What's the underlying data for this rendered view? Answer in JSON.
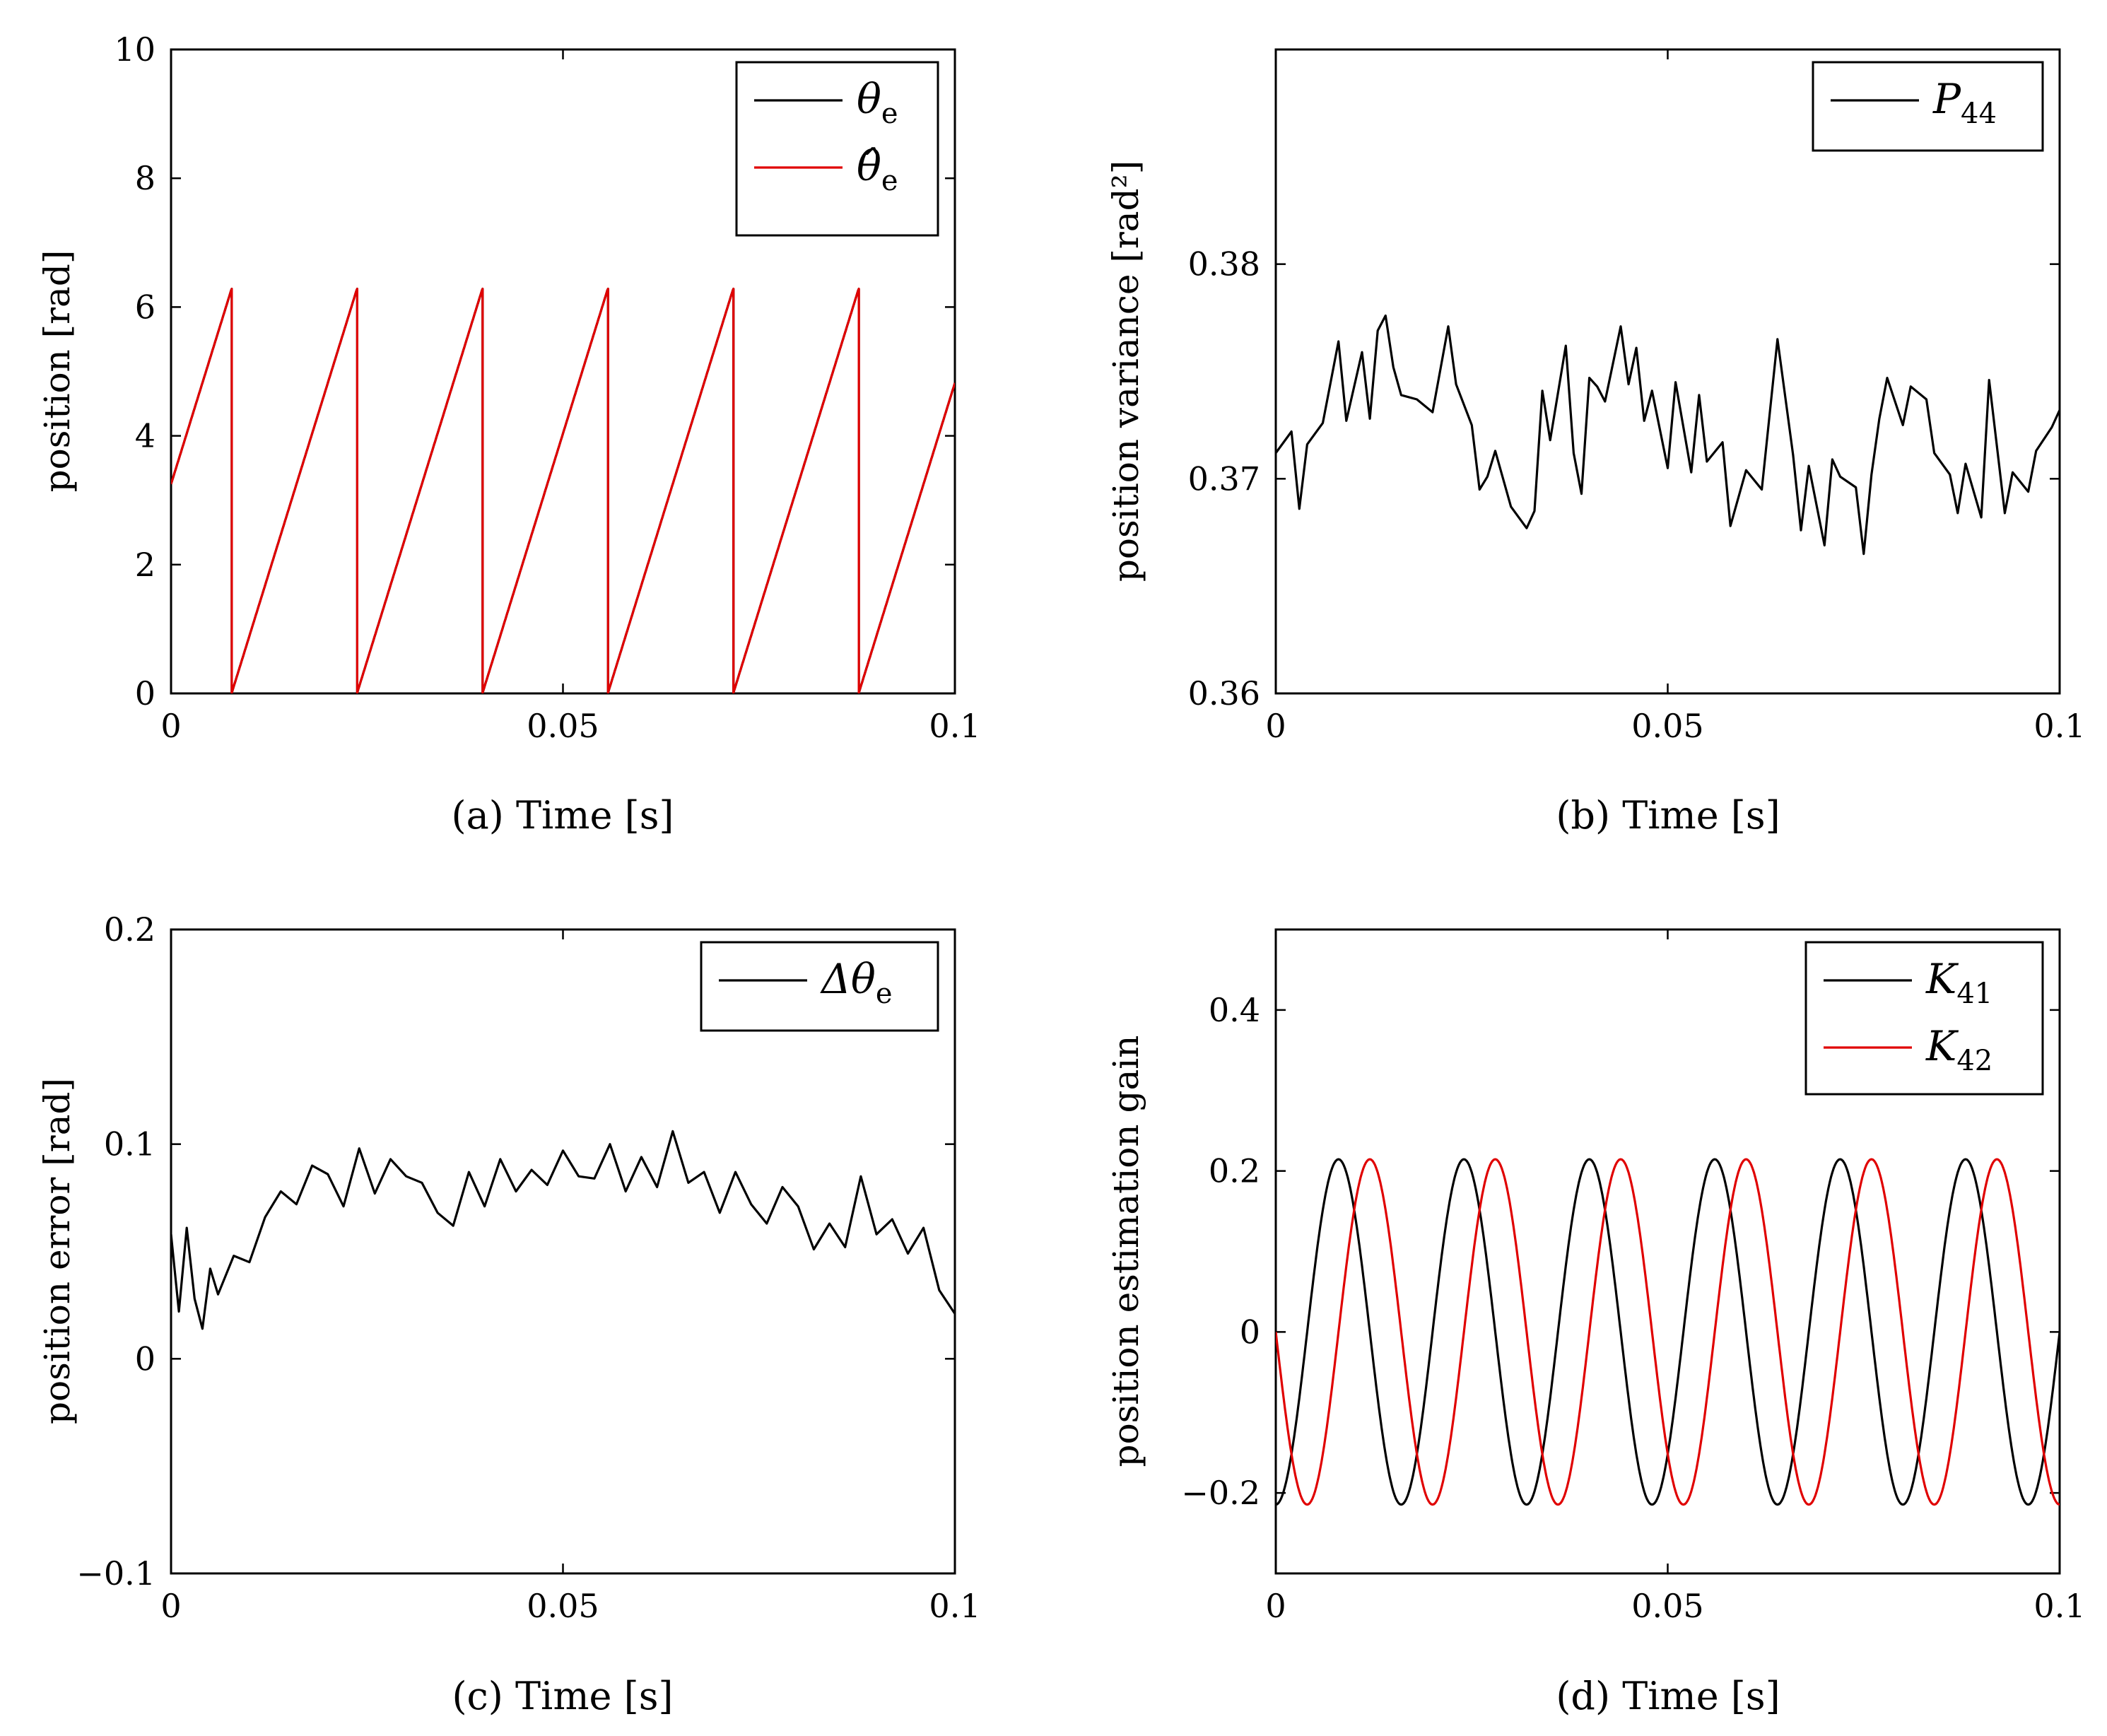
{
  "colors": {
    "black_series": "#000000",
    "red_series": "#e00000",
    "axis": "#000000",
    "background": "#ffffff"
  },
  "chart_data": [
    {
      "id": "a",
      "type": "line",
      "caption": "(a) Time [s]",
      "xlabel": "Time [s]",
      "ylabel": "position [rad]",
      "xlim": [
        0,
        0.1
      ],
      "ylim": [
        0,
        10
      ],
      "x_ticks": [
        0,
        0.05,
        0.1
      ],
      "x_tick_labels": [
        "0",
        "0.05",
        "0.1"
      ],
      "y_ticks": [
        0,
        2,
        4,
        6,
        8,
        10
      ],
      "y_tick_labels": [
        "0",
        "2",
        "4",
        "6",
        "8",
        "10"
      ],
      "legend_position": "top-right",
      "series": [
        {
          "name": "θe",
          "label_main": "θ",
          "label_sub": "e",
          "color": "#000000",
          "kind": "sawtooth",
          "start": 3.25,
          "slope": 392.7,
          "period_wrap": 6.283,
          "min": 0
        },
        {
          "name": "θ̂e",
          "label_main": "θ̂",
          "label_sub": "e",
          "color": "#e00000",
          "kind": "sawtooth",
          "start": 3.25,
          "slope": 392.7,
          "period_wrap": 6.283,
          "min": 0
        }
      ]
    },
    {
      "id": "b",
      "type": "line",
      "caption": "(b) Time [s]",
      "xlabel": "Time [s]",
      "ylabel": "position variance [rad²]",
      "xlim": [
        0,
        0.1
      ],
      "ylim": [
        0.36,
        0.39
      ],
      "x_ticks": [
        0,
        0.05,
        0.1
      ],
      "x_tick_labels": [
        "0",
        "0.05",
        "0.1"
      ],
      "y_ticks": [
        0.36,
        0.37,
        0.38
      ],
      "y_tick_labels": [
        "0.36",
        "0.37",
        "0.38"
      ],
      "legend_position": "top-right",
      "series": [
        {
          "name": "P44",
          "label_main": "P",
          "label_sub": "44",
          "color": "#000000",
          "kind": "points",
          "x": [
            0,
            0.002,
            0.003,
            0.004,
            0.006,
            0.008,
            0.009,
            0.011,
            0.012,
            0.013,
            0.014,
            0.015,
            0.016,
            0.018,
            0.02,
            0.022,
            0.023,
            0.025,
            0.026,
            0.027,
            0.028,
            0.03,
            0.032,
            0.033,
            0.034,
            0.035,
            0.037,
            0.038,
            0.039,
            0.04,
            0.041,
            0.042,
            0.044,
            0.045,
            0.046,
            0.047,
            0.048,
            0.05,
            0.051,
            0.053,
            0.054,
            0.055,
            0.057,
            0.058,
            0.06,
            0.062,
            0.064,
            0.066,
            0.067,
            0.068,
            0.07,
            0.071,
            0.072,
            0.074,
            0.075,
            0.076,
            0.077,
            0.078,
            0.08,
            0.081,
            0.083,
            0.084,
            0.086,
            0.087,
            0.088,
            0.09,
            0.091,
            0.093,
            0.094,
            0.096,
            0.097,
            0.099,
            0.1
          ],
          "y": [
            0.3712,
            0.3722,
            0.3686,
            0.3716,
            0.3726,
            0.3764,
            0.3727,
            0.3759,
            0.3728,
            0.3769,
            0.3776,
            0.3752,
            0.3739,
            0.3737,
            0.3731,
            0.3771,
            0.3744,
            0.3725,
            0.3695,
            0.3701,
            0.3713,
            0.3687,
            0.3677,
            0.3685,
            0.3741,
            0.3718,
            0.3762,
            0.3712,
            0.3693,
            0.3747,
            0.3743,
            0.3736,
            0.3771,
            0.3744,
            0.3761,
            0.3727,
            0.3741,
            0.3705,
            0.3745,
            0.3703,
            0.3739,
            0.3708,
            0.3717,
            0.3678,
            0.3704,
            0.3695,
            0.3765,
            0.3711,
            0.3676,
            0.3706,
            0.3669,
            0.3709,
            0.3701,
            0.3696,
            0.3665,
            0.3702,
            0.3728,
            0.3747,
            0.3725,
            0.3743,
            0.3737,
            0.3712,
            0.3702,
            0.3684,
            0.3707,
            0.3682,
            0.3746,
            0.3684,
            0.3703,
            0.3694,
            0.3713,
            0.3724,
            0.3732
          ]
        }
      ]
    },
    {
      "id": "c",
      "type": "line",
      "caption": "(c) Time [s]",
      "xlabel": "Time [s]",
      "ylabel": "position error [rad]",
      "xlim": [
        0,
        0.1
      ],
      "ylim": [
        -0.1,
        0.2
      ],
      "x_ticks": [
        0,
        0.05,
        0.1
      ],
      "x_tick_labels": [
        "0",
        "0.05",
        "0.1"
      ],
      "y_ticks": [
        -0.1,
        0,
        0.1,
        0.2
      ],
      "y_tick_labels": [
        "−0.1",
        "0",
        "0.1",
        "0.2"
      ],
      "legend_position": "top-right",
      "series": [
        {
          "name": "Δθe",
          "label_main": "Δθ",
          "label_sub": "e",
          "color": "#000000",
          "kind": "points",
          "x": [
            0,
            0.001,
            0.002,
            0.003,
            0.004,
            0.005,
            0.006,
            0.008,
            0.01,
            0.012,
            0.014,
            0.016,
            0.018,
            0.02,
            0.022,
            0.024,
            0.026,
            0.028,
            0.03,
            0.032,
            0.034,
            0.036,
            0.038,
            0.04,
            0.042,
            0.044,
            0.046,
            0.048,
            0.05,
            0.052,
            0.054,
            0.056,
            0.058,
            0.06,
            0.062,
            0.064,
            0.066,
            0.068,
            0.07,
            0.072,
            0.074,
            0.076,
            0.078,
            0.08,
            0.082,
            0.084,
            0.086,
            0.088,
            0.09,
            0.092,
            0.094,
            0.096,
            0.098,
            0.1
          ],
          "y": [
            0.058,
            0.022,
            0.061,
            0.028,
            0.014,
            0.042,
            0.03,
            0.048,
            0.045,
            0.066,
            0.078,
            0.072,
            0.09,
            0.086,
            0.071,
            0.098,
            0.077,
            0.093,
            0.085,
            0.082,
            0.068,
            0.062,
            0.087,
            0.071,
            0.093,
            0.078,
            0.088,
            0.081,
            0.097,
            0.085,
            0.084,
            0.1,
            0.078,
            0.094,
            0.08,
            0.106,
            0.082,
            0.087,
            0.068,
            0.087,
            0.072,
            0.063,
            0.08,
            0.071,
            0.051,
            0.063,
            0.052,
            0.085,
            0.058,
            0.065,
            0.049,
            0.061,
            0.032,
            0.021
          ]
        }
      ]
    },
    {
      "id": "d",
      "type": "line",
      "caption": "(d) Time [s]",
      "xlabel": "Time [s]",
      "ylabel": "position estimation gain",
      "xlim": [
        0,
        0.1
      ],
      "ylim": [
        -0.3,
        0.5
      ],
      "x_ticks": [
        0,
        0.05,
        0.1
      ],
      "x_tick_labels": [
        "0",
        "0.05",
        "0.1"
      ],
      "y_ticks": [
        -0.2,
        0,
        0.2,
        0.4
      ],
      "y_tick_labels": [
        "−0.2",
        "0",
        "0.2",
        "0.4"
      ],
      "legend_position": "top-right",
      "series": [
        {
          "name": "K41",
          "label_main": "K",
          "label_sub": "41",
          "color": "#000000",
          "kind": "sine",
          "amplitude": 0.2145,
          "period": 0.016,
          "phase": -1.5708
        },
        {
          "name": "K42",
          "label_main": "K",
          "label_sub": "42",
          "color": "#e00000",
          "kind": "sine",
          "amplitude": 0.2145,
          "period": 0.016,
          "phase": 3.1416
        }
      ]
    }
  ]
}
